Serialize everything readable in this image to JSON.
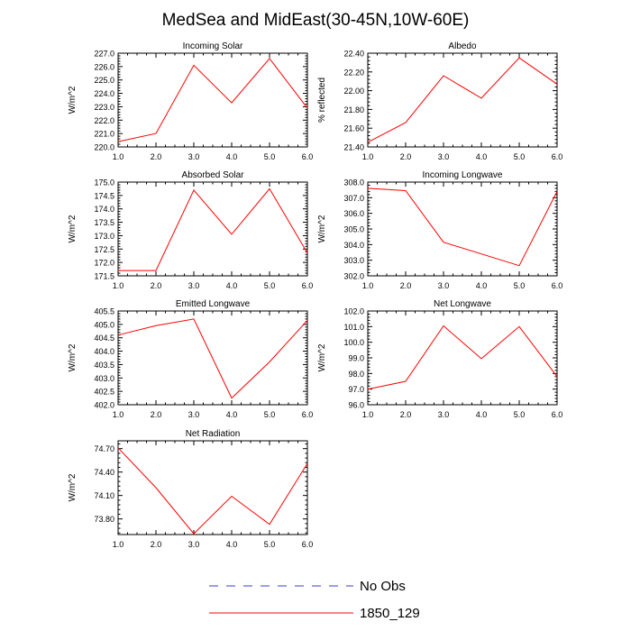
{
  "figure_title": "MedSea and MidEast(30-45N,10W-60E)",
  "legend": {
    "entries": [
      {
        "label": "No Obs",
        "color": "#3b3bd0",
        "dash": "dashed"
      },
      {
        "label": "1850_129",
        "color": "#ff0000",
        "dash": "solid"
      }
    ]
  },
  "chart_data": [
    {
      "id": "incoming-solar",
      "type": "line",
      "title": "Incoming Solar",
      "ylabel": "W/m^2",
      "xlim": [
        1,
        6
      ],
      "ylim": [
        220,
        227
      ],
      "xticks": [
        "1.0",
        "2.0",
        "3.0",
        "4.0",
        "5.0",
        "6.0"
      ],
      "yticks": [
        "220.0",
        "221.0",
        "222.0",
        "223.0",
        "224.0",
        "225.0",
        "226.0",
        "227.0"
      ],
      "series": [
        {
          "name": "1850_129",
          "x": [
            1,
            2,
            3,
            4,
            5,
            6
          ],
          "values": [
            220.4,
            221.0,
            226.1,
            223.3,
            226.6,
            222.9
          ]
        }
      ]
    },
    {
      "id": "albedo",
      "type": "line",
      "title": "Albedo",
      "ylabel": "% reflected",
      "xlim": [
        1,
        6
      ],
      "ylim": [
        21.4,
        22.4
      ],
      "xticks": [
        "1.0",
        "2.0",
        "3.0",
        "4.0",
        "5.0",
        "6.0"
      ],
      "yticks": [
        "21.40",
        "21.60",
        "21.80",
        "22.00",
        "22.20",
        "22.40"
      ],
      "series": [
        {
          "name": "1850_129",
          "x": [
            1,
            2,
            3,
            4,
            5,
            6
          ],
          "values": [
            21.45,
            21.66,
            22.16,
            21.92,
            22.35,
            22.07
          ]
        }
      ]
    },
    {
      "id": "absorbed-solar",
      "type": "line",
      "title": "Absorbed Solar",
      "ylabel": "W/m^2",
      "xlim": [
        1,
        6
      ],
      "ylim": [
        171.5,
        175.0
      ],
      "xticks": [
        "1.0",
        "2.0",
        "3.0",
        "4.0",
        "5.0",
        "6.0"
      ],
      "yticks": [
        "171.5",
        "172.0",
        "172.5",
        "173.0",
        "173.5",
        "174.0",
        "174.5",
        "175.0"
      ],
      "series": [
        {
          "name": "1850_129",
          "x": [
            1,
            2,
            3,
            4,
            5,
            6
          ],
          "values": [
            171.7,
            171.7,
            174.7,
            173.05,
            174.75,
            172.35
          ]
        }
      ]
    },
    {
      "id": "incoming-longwave",
      "type": "line",
      "title": "Incoming Longwave",
      "ylabel": "W/m^2",
      "xlim": [
        1,
        6
      ],
      "ylim": [
        302,
        308
      ],
      "xticks": [
        "1.0",
        "2.0",
        "3.0",
        "4.0",
        "5.0",
        "6.0"
      ],
      "yticks": [
        "302.0",
        "303.0",
        "304.0",
        "305.0",
        "306.0",
        "307.0",
        "308.0"
      ],
      "series": [
        {
          "name": "1850_129",
          "x": [
            1,
            2,
            3,
            4,
            5,
            6
          ],
          "values": [
            307.6,
            307.45,
            304.15,
            303.4,
            302.65,
            307.4
          ]
        }
      ]
    },
    {
      "id": "emitted-longwave",
      "type": "line",
      "title": "Emitted Longwave",
      "ylabel": "W/m^2",
      "xlim": [
        1,
        6
      ],
      "ylim": [
        402,
        405.5
      ],
      "xticks": [
        "1.0",
        "2.0",
        "3.0",
        "4.0",
        "5.0",
        "6.0"
      ],
      "yticks": [
        "402.0",
        "402.5",
        "403.0",
        "403.5",
        "404.0",
        "404.5",
        "405.0",
        "405.5"
      ],
      "series": [
        {
          "name": "1850_129",
          "x": [
            1,
            2,
            3,
            4,
            5,
            6
          ],
          "values": [
            404.6,
            404.95,
            405.2,
            402.25,
            403.6,
            405.15
          ]
        }
      ]
    },
    {
      "id": "net-longwave",
      "type": "line",
      "title": "Net Longwave",
      "ylabel": "W/m^2",
      "xlim": [
        1,
        6
      ],
      "ylim": [
        96,
        102
      ],
      "xticks": [
        "1.0",
        "2.0",
        "3.0",
        "4.0",
        "5.0",
        "6.0"
      ],
      "yticks": [
        "96.0",
        "97.0",
        "98.0",
        "99.0",
        "100.0",
        "101.0",
        "102.0"
      ],
      "series": [
        {
          "name": "1850_129",
          "x": [
            1,
            2,
            3,
            4,
            5,
            6
          ],
          "values": [
            97.0,
            97.5,
            101.05,
            98.95,
            101.0,
            97.8
          ]
        }
      ]
    },
    {
      "id": "net-radiation",
      "type": "line",
      "title": "Net Radiation",
      "ylabel": "W/m^2",
      "xlim": [
        1,
        6
      ],
      "ylim": [
        73.6,
        74.8
      ],
      "xticks": [
        "1.0",
        "2.0",
        "3.0",
        "4.0",
        "5.0",
        "6.0"
      ],
      "yticks": [
        "73.80",
        "74.10",
        "74.40",
        "74.70"
      ],
      "series": [
        {
          "name": "1850_129",
          "x": [
            1,
            2,
            3,
            4,
            5,
            6
          ],
          "values": [
            74.71,
            74.2,
            73.61,
            74.09,
            73.73,
            74.51
          ]
        }
      ]
    }
  ]
}
